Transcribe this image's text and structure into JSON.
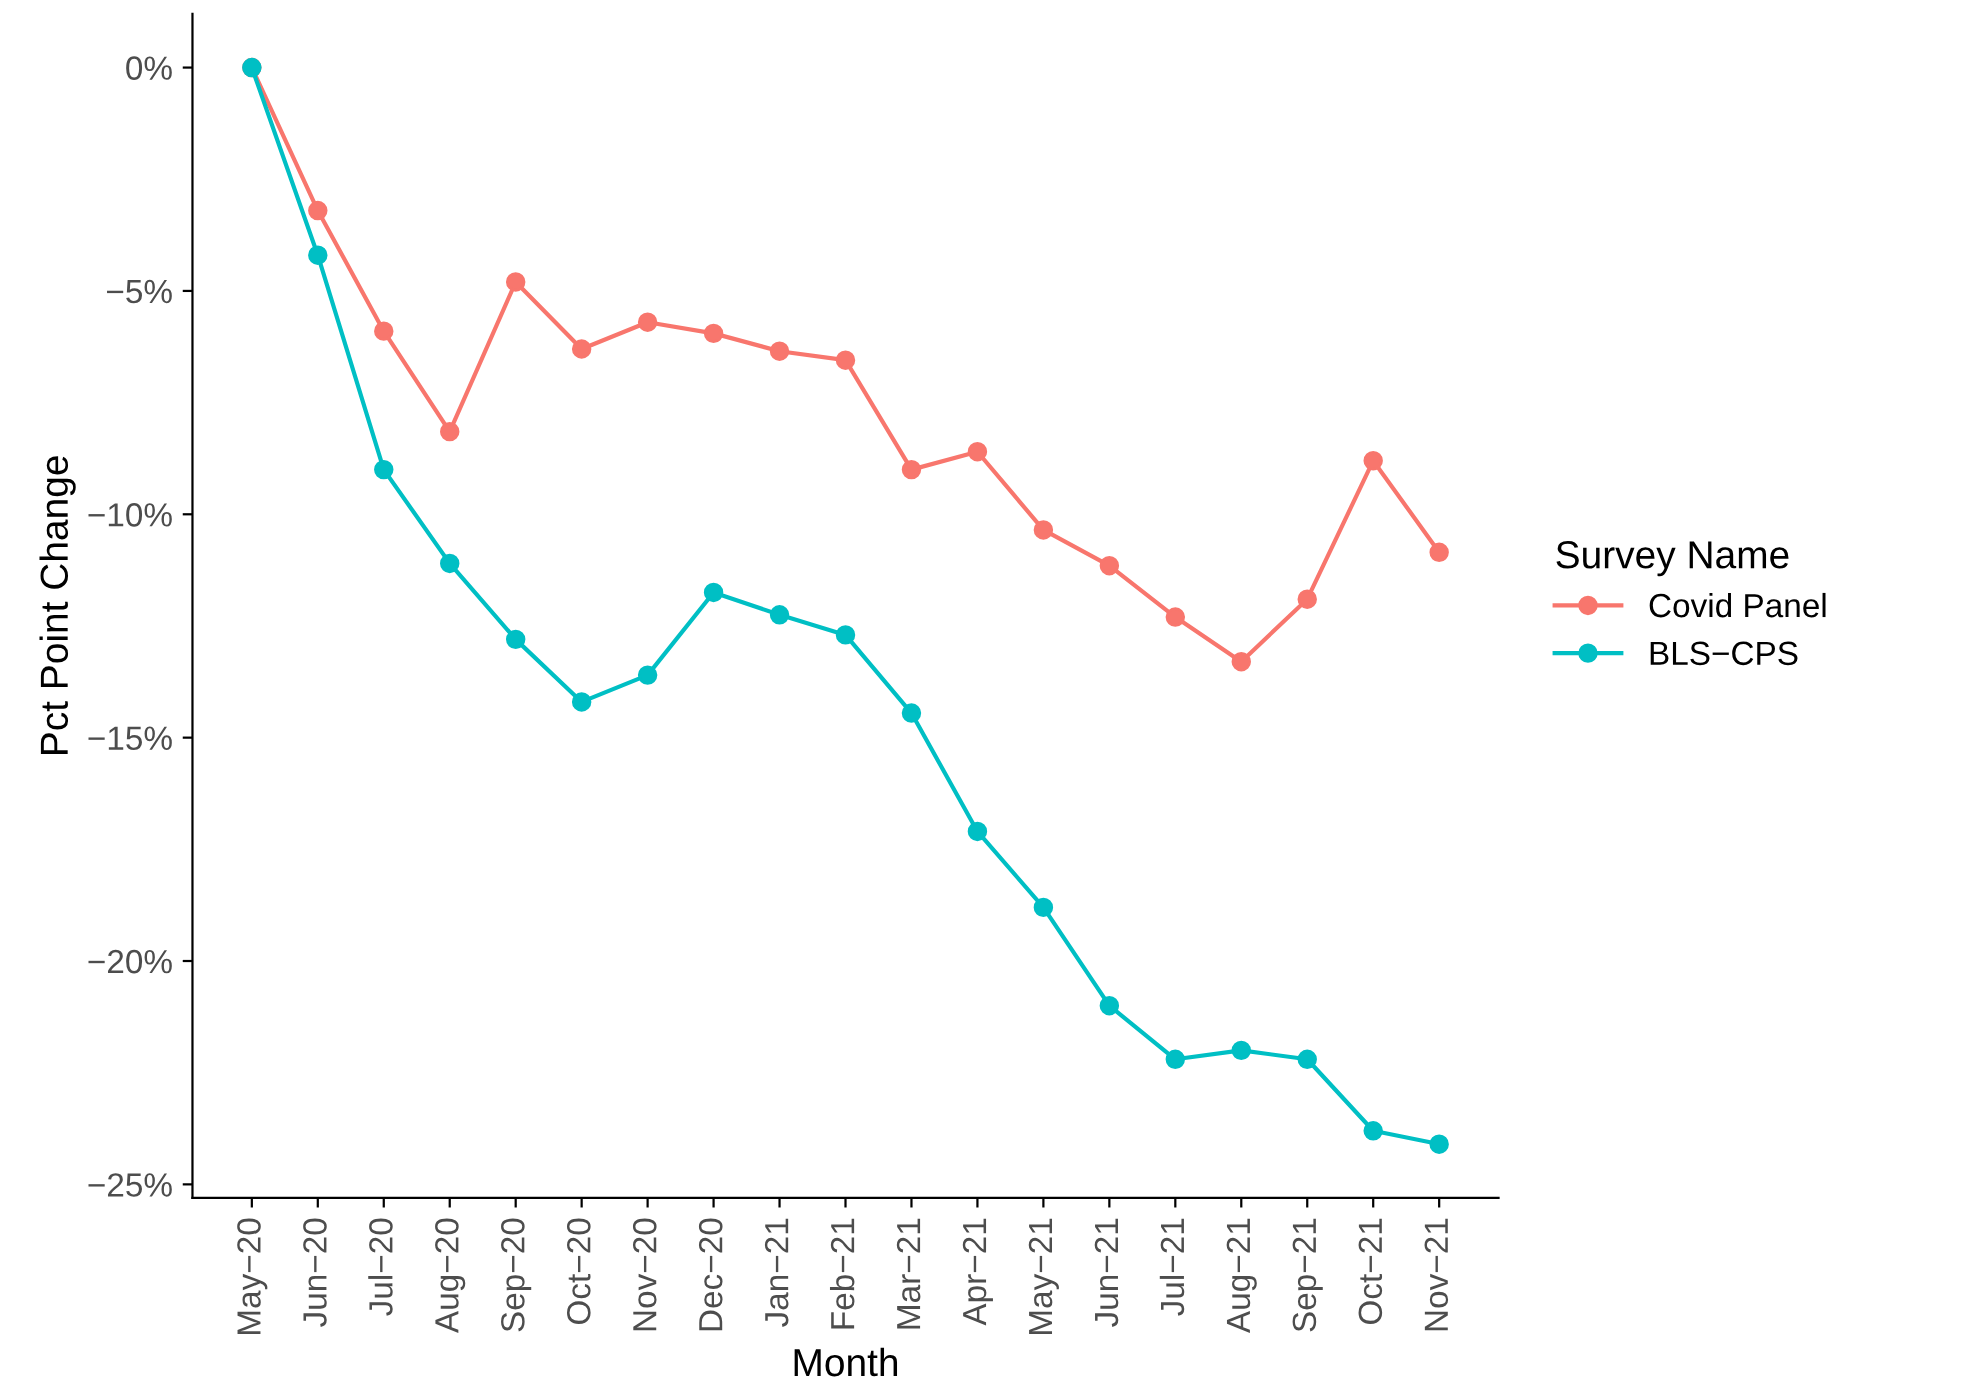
{
  "chart_data": {
    "type": "line",
    "xlabel": "Month",
    "ylabel": "Pct Point Change",
    "legend_title": "Survey Name",
    "categories": [
      "May−20",
      "Jun−20",
      "Jul−20",
      "Aug−20",
      "Sep−20",
      "Oct−20",
      "Nov−20",
      "Dec−20",
      "Jan−21",
      "Feb−21",
      "Mar−21",
      "Apr−21",
      "May−21",
      "Jun−21",
      "Jul−21",
      "Aug−21",
      "Sep−21",
      "Oct−21",
      "Nov−21"
    ],
    "series": [
      {
        "name": "Covid Panel",
        "color": "#f8766d",
        "values": [
          0,
          -3.2,
          -5.9,
          -8.15,
          -4.8,
          -6.3,
          -5.7,
          -5.95,
          -6.35,
          -6.55,
          -9.0,
          -8.6,
          -10.35,
          -11.15,
          -12.3,
          -13.3,
          -11.9,
          -8.8,
          -10.85
        ]
      },
      {
        "name": "BLS−CPS",
        "color": "#00bfc4",
        "values": [
          0,
          -4.2,
          -9.0,
          -11.1,
          -12.8,
          -14.2,
          -13.6,
          -11.75,
          -12.25,
          -12.7,
          -14.45,
          -17.1,
          -18.8,
          -21.0,
          -22.2,
          -22.0,
          -22.2,
          -23.8,
          -24.1
        ]
      }
    ],
    "ylim": [
      -25.3,
      1.2
    ],
    "yticks": [
      {
        "value": -25,
        "label": "−25%"
      },
      {
        "value": -20,
        "label": "−20%"
      },
      {
        "value": -15,
        "label": "−15%"
      },
      {
        "value": -10,
        "label": "−10%"
      },
      {
        "value": -5,
        "label": "−5%"
      },
      {
        "value": 0,
        "label": "0%"
      }
    ],
    "grid": false,
    "legend": "right",
    "marker": "circle",
    "line_style": "solid"
  }
}
